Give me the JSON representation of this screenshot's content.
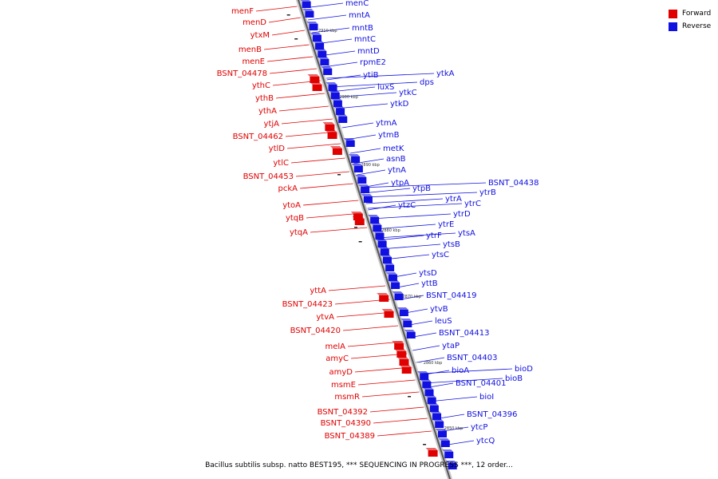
{
  "legend": {
    "forward_label": "Forward",
    "reverse_label": "Reverse",
    "forward_color": "#e00000",
    "reverse_color": "#1010e0"
  },
  "caption": "Bacillus subtilis subsp. natto BEST195, *** SEQUENCING IN PROGRESS ***, 12 order...",
  "scale_labels": [
    "2910 kbp",
    "2900 kbp",
    "2890 kbp",
    "2880 kbp",
    "2870 kbp",
    "2860 kbp",
    "2850 kbp"
  ],
  "forward_genes": [
    "menF",
    "menD",
    "ytxM",
    "menB",
    "menE",
    "BSNT_04478",
    "ythC",
    "ythB",
    "ythA",
    "ytjA",
    "BSNT_04462",
    "ytlD",
    "ytlC",
    "BSNT_04453",
    "pckA",
    "ytoA",
    "ytqB",
    "ytqA",
    "yttA",
    "BSNT_04423",
    "ytvA",
    "BSNT_04420",
    "melA",
    "amyC",
    "amyD",
    "msmE",
    "msmR",
    "BSNT_04392",
    "BSNT_04390",
    "BSNT_04389"
  ],
  "reverse_genes": [
    "menC",
    "mntA",
    "mntB",
    "mntC",
    "mntD",
    "rpmE2",
    "ytiB",
    "ytkA",
    "dps",
    "luxS",
    "ytkC",
    "ytkD",
    "ytmA",
    "ytmB",
    "metK",
    "asnB",
    "ytnA",
    "ytpA",
    "ytpB",
    "BSNT_04438",
    "ytrB",
    "ytrA",
    "ytrC",
    "ytzC",
    "ytrD",
    "ytrE",
    "ytrF",
    "ytsA",
    "ytsB",
    "ytsC",
    "ytsD",
    "yttB",
    "BSNT_04419",
    "ytvB",
    "leuS",
    "BSNT_04413",
    "ytaP",
    "BSNT_04403",
    "bioD",
    "bioA",
    "bioB",
    "BSNT_04401",
    "bioI",
    "BSNT_04396",
    "ytcP",
    "ytcQ"
  ]
}
